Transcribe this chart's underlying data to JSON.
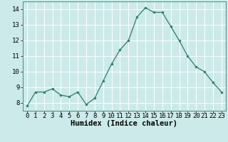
{
  "x": [
    0,
    1,
    2,
    3,
    4,
    5,
    6,
    7,
    8,
    9,
    10,
    11,
    12,
    13,
    14,
    15,
    16,
    17,
    18,
    19,
    20,
    21,
    22,
    23
  ],
  "y": [
    7.8,
    8.7,
    8.7,
    8.9,
    8.5,
    8.4,
    8.7,
    7.9,
    8.3,
    9.4,
    10.5,
    11.4,
    12.0,
    13.5,
    14.1,
    13.8,
    13.8,
    12.9,
    12.0,
    11.0,
    10.3,
    10.0,
    9.3,
    8.7
  ],
  "xlabel": "Humidex (Indice chaleur)",
  "xlim": [
    -0.5,
    23.5
  ],
  "ylim": [
    7.5,
    14.5
  ],
  "yticks": [
    8,
    9,
    10,
    11,
    12,
    13,
    14
  ],
  "xticks": [
    0,
    1,
    2,
    3,
    4,
    5,
    6,
    7,
    8,
    9,
    10,
    11,
    12,
    13,
    14,
    15,
    16,
    17,
    18,
    19,
    20,
    21,
    22,
    23
  ],
  "line_color": "#2e7d6e",
  "marker_size": 2.0,
  "bg_color": "#cceaea",
  "grid_color": "#ffffff",
  "xlabel_fontsize": 7.5,
  "tick_fontsize": 6.5
}
